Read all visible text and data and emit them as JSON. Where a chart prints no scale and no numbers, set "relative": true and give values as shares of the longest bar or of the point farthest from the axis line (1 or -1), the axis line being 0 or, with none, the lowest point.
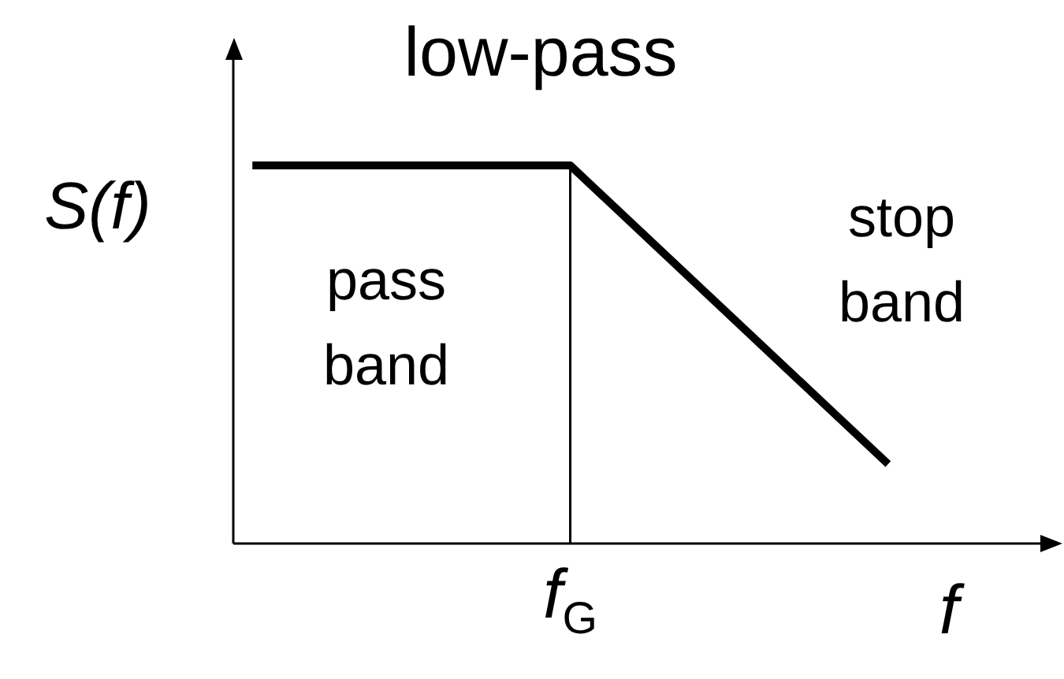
{
  "chart_data": {
    "type": "line",
    "title": "low-pass",
    "xlabel": "f",
    "ylabel": "S(f)",
    "categories": [
      null,
      null,
      null
    ],
    "series": [
      {
        "color": "#000000",
        "values": [
          1,
          1,
          0.21
        ]
      }
    ],
    "relative": true,
    "annotations": [
      "pass band",
      "stop band",
      "f$_{G}$"
    ],
    "marker": "none",
    "line_style": "solid"
  }
}
